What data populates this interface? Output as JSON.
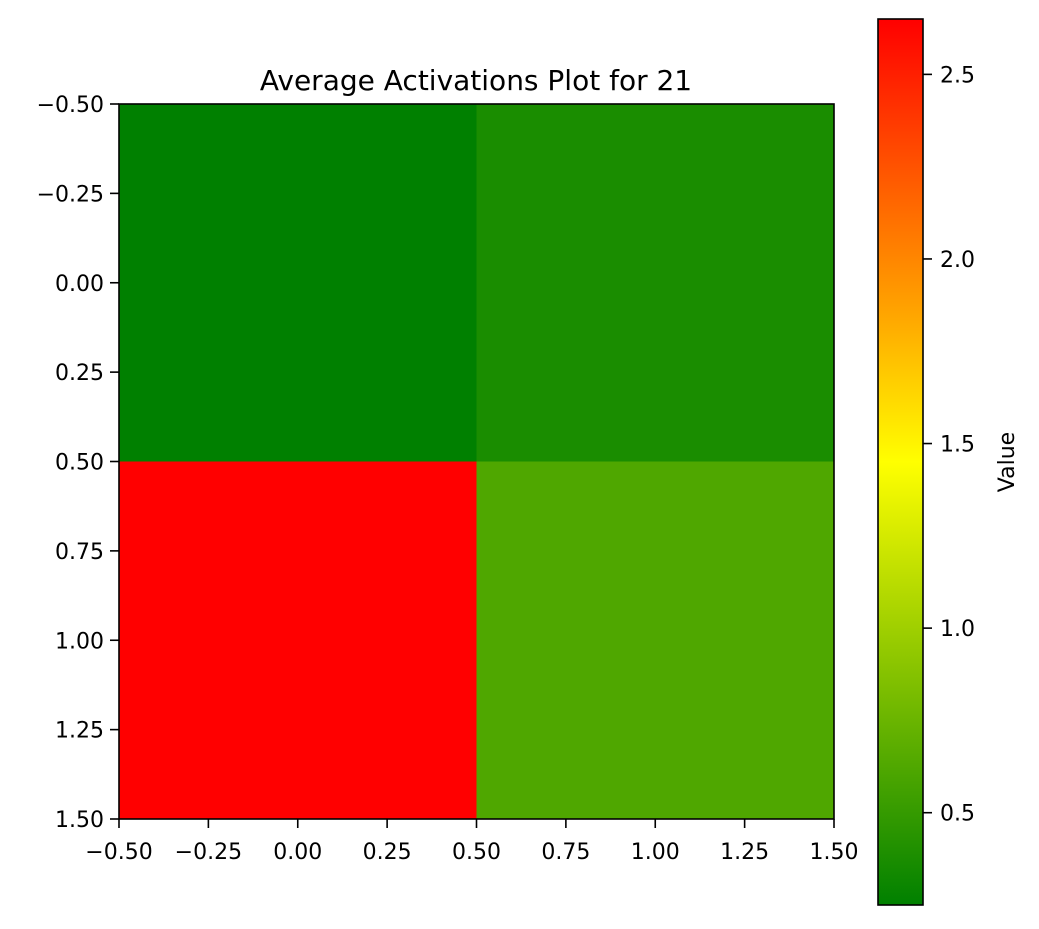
{
  "chart_data": {
    "type": "heatmap",
    "title": "Average Activations Plot for 21",
    "xlabel": "",
    "ylabel": "",
    "x_ticks": [
      -0.5,
      -0.25,
      0.0,
      0.25,
      0.5,
      0.75,
      1.0,
      1.25,
      1.5
    ],
    "y_ticks": [
      -0.5,
      -0.25,
      0.0,
      0.25,
      0.5,
      0.75,
      1.0,
      1.25,
      1.5
    ],
    "x_tick_labels": [
      "−0.50",
      "−0.25",
      "0.00",
      "0.25",
      "0.50",
      "0.75",
      "1.00",
      "1.25",
      "1.50"
    ],
    "y_tick_labels": [
      "−0.50",
      "−0.25",
      "0.00",
      "0.25",
      "0.50",
      "0.75",
      "1.00",
      "1.25",
      "1.50"
    ],
    "xlim": [
      -0.5,
      1.5
    ],
    "ylim": [
      1.5,
      -0.5
    ],
    "values": [
      [
        0.25,
        0.37
      ],
      [
        2.65,
        0.62
      ]
    ],
    "grid": false,
    "colorbar": {
      "label": "Value",
      "range": [
        0.25,
        2.65
      ],
      "ticks": [
        0.5,
        1.0,
        1.5,
        2.0,
        2.5
      ],
      "tick_labels": [
        "0.5",
        "1.0",
        "1.5",
        "2.0",
        "2.5"
      ],
      "colormap": [
        "#008000",
        "#ffff00",
        "#ffa500",
        "#ff0000"
      ]
    }
  }
}
